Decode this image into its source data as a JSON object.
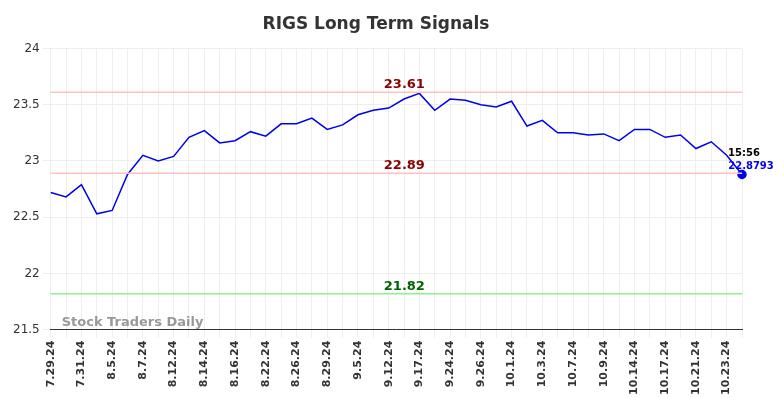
{
  "chart_data": {
    "type": "line",
    "title": "RIGS Long Term Signals",
    "categories": [
      "7.29.24",
      null,
      "7.31.24",
      null,
      "8.5.24",
      null,
      "8.7.24",
      null,
      "8.12.24",
      null,
      "8.14.24",
      null,
      "8.16.24",
      null,
      "8.22.24",
      null,
      "8.26.24",
      null,
      "8.29.24",
      null,
      "9.5.24",
      null,
      "9.12.24",
      null,
      "9.17.24",
      null,
      "9.24.24",
      null,
      "9.26.24",
      null,
      "10.1.24",
      null,
      "10.3.24",
      null,
      "10.7.24",
      null,
      "10.9.24",
      null,
      "10.14.24",
      null,
      "10.17.24",
      null,
      "10.21.24",
      null,
      "10.23.24",
      null
    ],
    "values": [
      22.72,
      22.68,
      22.79,
      22.53,
      22.56,
      22.88,
      23.05,
      23.0,
      23.04,
      23.21,
      23.27,
      23.16,
      23.18,
      23.26,
      23.22,
      23.33,
      23.33,
      23.38,
      23.28,
      23.32,
      23.41,
      23.45,
      23.47,
      23.55,
      23.6,
      23.45,
      23.55,
      23.54,
      23.5,
      23.48,
      23.53,
      23.31,
      23.36,
      23.25,
      23.25,
      23.23,
      23.24,
      23.18,
      23.28,
      23.28,
      23.21,
      23.23,
      23.11,
      23.17,
      23.05,
      22.8793
    ],
    "color": "#0000ee",
    "ylim": [
      21.5,
      24
    ],
    "yticks": [
      21.5,
      22,
      22.5,
      23,
      23.5,
      24
    ],
    "grid": true,
    "levels": [
      {
        "value": 23.61,
        "color": "#ffc0c0"
      },
      {
        "value": 22.89,
        "color": "#ffc0c0"
      },
      {
        "value": 21.82,
        "color": "#90ee90"
      }
    ],
    "last_point_time": "15:56",
    "watermark": "Stock Traders Daily"
  }
}
